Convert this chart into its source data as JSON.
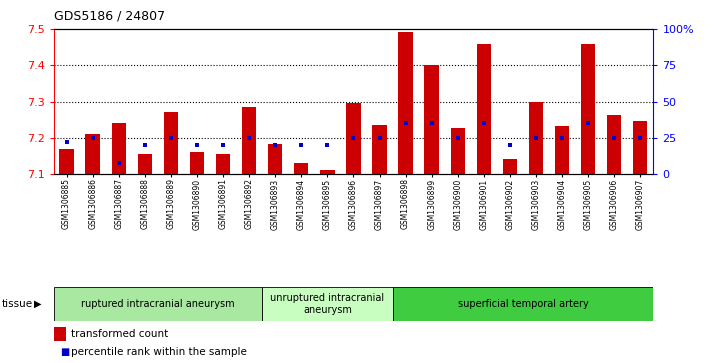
{
  "title": "GDS5186 / 24807",
  "samples": [
    "GSM1306885",
    "GSM1306886",
    "GSM1306887",
    "GSM1306888",
    "GSM1306889",
    "GSM1306890",
    "GSM1306891",
    "GSM1306892",
    "GSM1306893",
    "GSM1306894",
    "GSM1306895",
    "GSM1306896",
    "GSM1306897",
    "GSM1306898",
    "GSM1306899",
    "GSM1306900",
    "GSM1306901",
    "GSM1306902",
    "GSM1306903",
    "GSM1306904",
    "GSM1306905",
    "GSM1306906",
    "GSM1306907"
  ],
  "transformed_count": [
    7.17,
    7.21,
    7.24,
    7.155,
    7.272,
    7.16,
    7.155,
    7.285,
    7.182,
    7.13,
    7.112,
    7.295,
    7.235,
    7.493,
    7.402,
    7.228,
    7.458,
    7.142,
    7.298,
    7.232,
    7.458,
    7.262,
    7.248
  ],
  "percentile_rank": [
    22,
    25,
    8,
    20,
    25,
    20,
    20,
    25,
    20,
    20,
    20,
    25,
    25,
    35,
    35,
    25,
    35,
    20,
    25,
    25,
    35,
    25,
    25
  ],
  "ylim_left": [
    7.1,
    7.5
  ],
  "ylim_right": [
    0,
    100
  ],
  "yticks_left": [
    7.1,
    7.2,
    7.3,
    7.4,
    7.5
  ],
  "yticks_right": [
    0,
    25,
    50,
    75,
    100
  ],
  "bar_color": "#cc0000",
  "marker_color": "#0000cc",
  "groups": [
    {
      "label": "ruptured intracranial aneurysm",
      "start": 0,
      "end": 8,
      "color": "#a8e8a0"
    },
    {
      "label": "unruptured intracranial\naneurysm",
      "start": 8,
      "end": 13,
      "color": "#c8ffc0"
    },
    {
      "label": "superficial temporal artery",
      "start": 13,
      "end": 23,
      "color": "#40cc40"
    }
  ],
  "legend_bar_label": "transformed count",
  "legend_marker_label": "percentile rank within the sample",
  "tissue_label": "tissue"
}
